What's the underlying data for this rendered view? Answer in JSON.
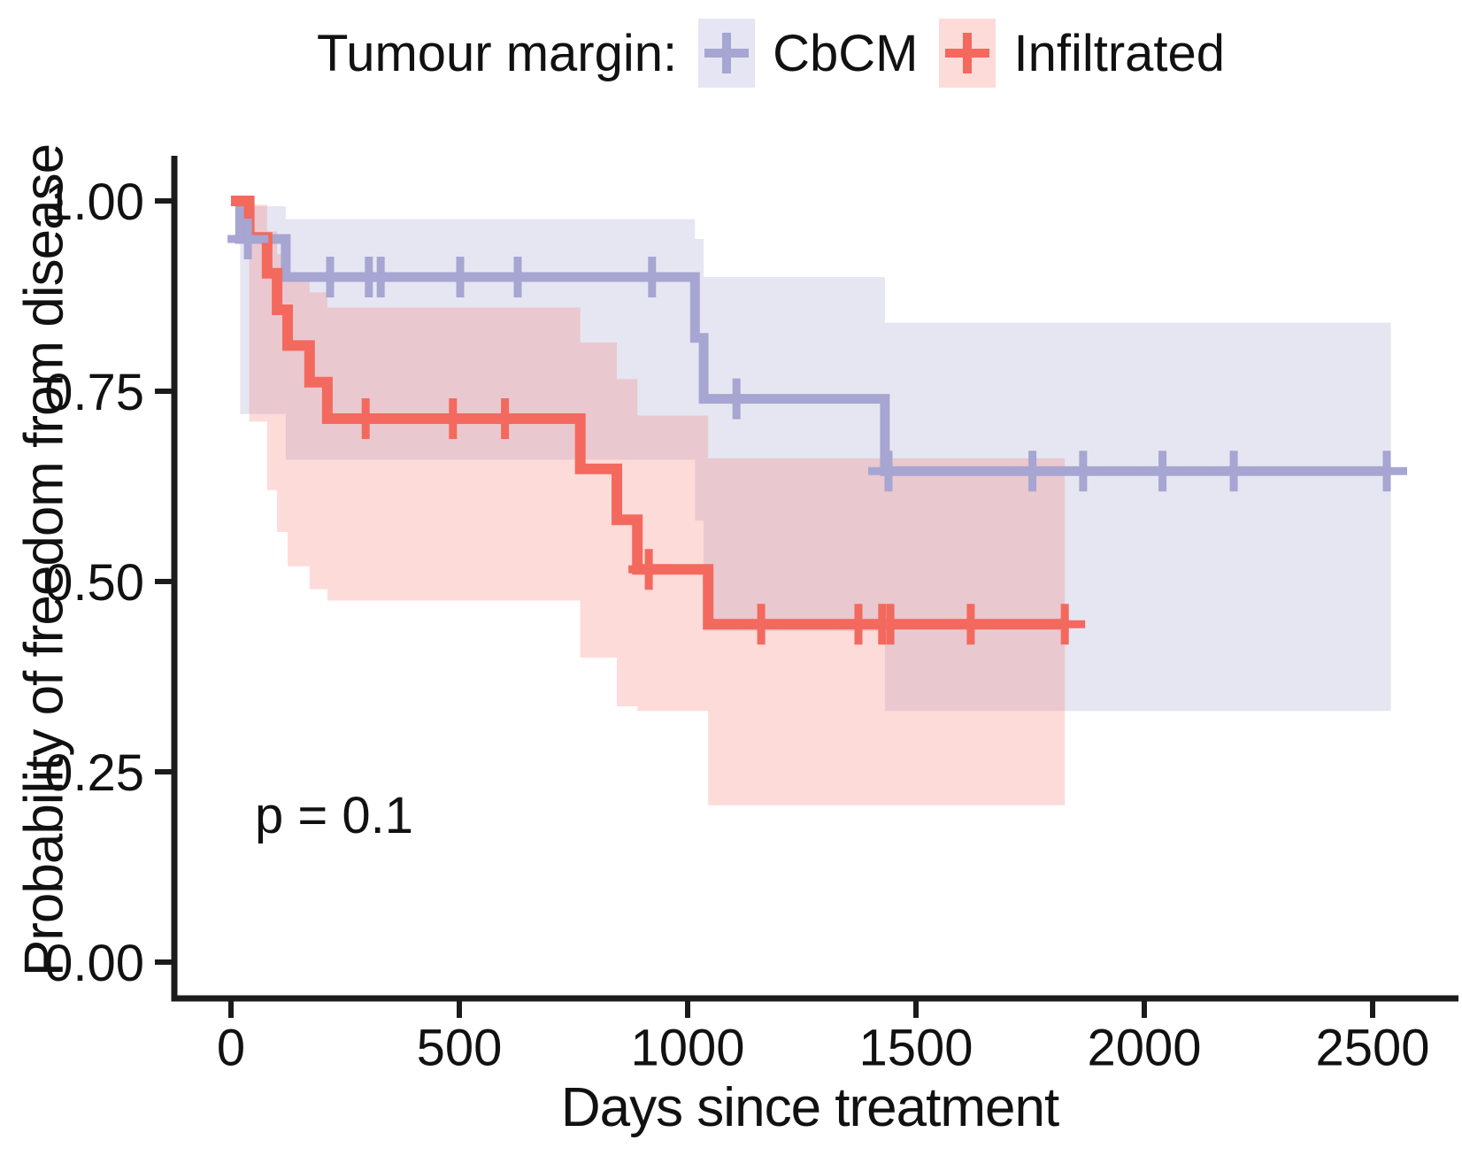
{
  "legend": {
    "title": "Tumour margin:"
  },
  "annotations": {
    "p_value": "p = 0.1"
  },
  "colors": {
    "cbcm_line": "#a7a5d1",
    "cbcm_fill": "rgba(166,164,210,0.28)",
    "cbcm_key_bg": "#e6e5f3",
    "infiltrated_line": "#f3695e",
    "infiltrated_fill": "rgba(247,106,95,0.24)",
    "infiltrated_key_bg": "#fddbd9",
    "axis": "#1b1b1b",
    "text": "#111111"
  },
  "chart_data": {
    "type": "line",
    "subtype": "kaplan-meier-step-with-confidence-bands",
    "title": "",
    "xlabel": "Days since treatment",
    "ylabel": "Probability of freedom from disease",
    "xlim": [
      0,
      2600
    ],
    "ylim": [
      0,
      1.05
    ],
    "grid": false,
    "legend_position": "top",
    "p_value_text": "p = 0.1",
    "x_ticks": [
      0,
      500,
      1000,
      1500,
      2000,
      2500
    ],
    "x_tick_labels": [
      "0",
      "500",
      "1000",
      "1500",
      "2000",
      "2500"
    ],
    "y_ticks": [
      0,
      0.25,
      0.5,
      0.75,
      1
    ],
    "y_tick_labels": [
      "0.00",
      "0.25",
      "0.50",
      "0.75",
      "1.00"
    ],
    "series": [
      {
        "name": "CbCM",
        "steps": [
          [
            0,
            1.0
          ],
          [
            20,
            0.95
          ],
          [
            120,
            0.9
          ],
          [
            1016,
            0.82
          ],
          [
            1035,
            0.74
          ],
          [
            1432,
            0.645
          ]
        ],
        "end_day": 2540,
        "censor_marks": [
          [
            37,
            0.95
          ],
          [
            217,
            0.9
          ],
          [
            302,
            0.9
          ],
          [
            328,
            0.9
          ],
          [
            502,
            0.9
          ],
          [
            628,
            0.9
          ],
          [
            922,
            0.9
          ],
          [
            1107,
            0.74
          ],
          [
            1440,
            0.645
          ],
          [
            1755,
            0.645
          ],
          [
            1866,
            0.645
          ],
          [
            2040,
            0.645
          ],
          [
            2196,
            0.645
          ],
          [
            2531,
            0.645
          ]
        ],
        "ci_days": [
          20,
          120,
          1016,
          1035,
          1432
        ],
        "ci_upper": [
          0.993,
          0.976,
          0.95,
          0.9,
          0.84
        ],
        "ci_lower": [
          0.72,
          0.66,
          0.58,
          0.435,
          0.33
        ]
      },
      {
        "name": "Infiltrated",
        "steps": [
          [
            0,
            1.0
          ],
          [
            40,
            0.952
          ],
          [
            79,
            0.905
          ],
          [
            101,
            0.857
          ],
          [
            124,
            0.81
          ],
          [
            172,
            0.762
          ],
          [
            211,
            0.714
          ],
          [
            765,
            0.648
          ],
          [
            845,
            0.581
          ],
          [
            890,
            0.516
          ],
          [
            1045,
            0.444
          ]
        ],
        "end_day": 1826,
        "censor_marks": [
          [
            295,
            0.714
          ],
          [
            486,
            0.714
          ],
          [
            600,
            0.714
          ],
          [
            915,
            0.516
          ],
          [
            1161,
            0.444
          ],
          [
            1374,
            0.444
          ],
          [
            1426,
            0.444
          ],
          [
            1444,
            0.444
          ],
          [
            1620,
            0.444
          ],
          [
            1826,
            0.444
          ]
        ],
        "ci_days": [
          40,
          79,
          101,
          124,
          172,
          211,
          765,
          845,
          890,
          1045
        ],
        "ci_upper": [
          0.995,
          0.96,
          0.93,
          0.9,
          0.88,
          0.86,
          0.814,
          0.766,
          0.718,
          0.662
        ],
        "ci_lower": [
          0.71,
          0.62,
          0.565,
          0.52,
          0.49,
          0.475,
          0.4,
          0.336,
          0.33,
          0.206
        ]
      }
    ]
  }
}
